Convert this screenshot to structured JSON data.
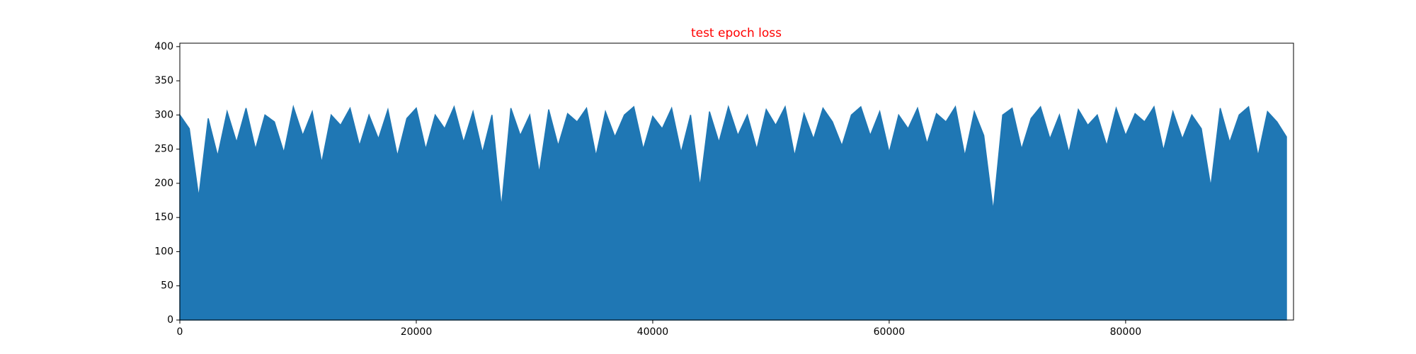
{
  "chart_data": {
    "type": "area",
    "title": "test epoch loss",
    "title_color": "#ff0000",
    "color": "#1f77b4",
    "x": [
      0,
      800,
      1600,
      2400,
      3200,
      4000,
      4800,
      5600,
      6400,
      7200,
      8000,
      8800,
      9600,
      10400,
      11200,
      12000,
      12800,
      13600,
      14400,
      15200,
      16000,
      16800,
      17600,
      18400,
      19200,
      20000,
      20800,
      21600,
      22400,
      23200,
      24000,
      24800,
      25600,
      26400,
      27200,
      28000,
      28800,
      29600,
      30400,
      31200,
      32000,
      32800,
      33600,
      34400,
      35200,
      36000,
      36800,
      37600,
      38400,
      39200,
      40000,
      40800,
      41600,
      42400,
      43200,
      44000,
      44800,
      45600,
      46400,
      47200,
      48000,
      48800,
      49600,
      50400,
      51200,
      52000,
      52800,
      53600,
      54400,
      55200,
      56000,
      56800,
      57600,
      58400,
      59200,
      60000,
      60800,
      61600,
      62400,
      63200,
      64000,
      64800,
      65600,
      66400,
      67200,
      68000,
      68800,
      69600,
      70400,
      71200,
      72000,
      72800,
      73600,
      74400,
      75200,
      76000,
      76800,
      77600,
      78400,
      79200,
      80000,
      80800,
      81600,
      82400,
      83200,
      84000,
      84800,
      85600,
      86400,
      87200,
      88000,
      88800,
      89600,
      90400,
      91200,
      92000,
      92800,
      93600
    ],
    "values": [
      300,
      280,
      180,
      295,
      240,
      305,
      260,
      310,
      250,
      300,
      290,
      245,
      312,
      270,
      305,
      230,
      300,
      285,
      310,
      255,
      300,
      265,
      308,
      240,
      295,
      310,
      250,
      300,
      280,
      312,
      260,
      305,
      245,
      300,
      165,
      310,
      270,
      300,
      215,
      308,
      255,
      302,
      290,
      310,
      240,
      305,
      268,
      300,
      312,
      250,
      298,
      280,
      310,
      245,
      300,
      195,
      305,
      260,
      312,
      270,
      300,
      250,
      308,
      285,
      312,
      240,
      302,
      265,
      310,
      290,
      255,
      300,
      312,
      270,
      305,
      245,
      300,
      280,
      310,
      258,
      302,
      290,
      312,
      240,
      305,
      270,
      160,
      300,
      310,
      250,
      295,
      312,
      265,
      300,
      245,
      308,
      285,
      300,
      255,
      310,
      270,
      302,
      290,
      312,
      248,
      305,
      265,
      300,
      280,
      195,
      310,
      260,
      300,
      312,
      240,
      305,
      290,
      268
    ],
    "xlim": [
      0,
      94200
    ],
    "xticks": [
      0,
      20000,
      40000,
      60000,
      80000
    ],
    "ylim": [
      0,
      405
    ],
    "yticks": [
      0,
      50,
      100,
      150,
      200,
      250,
      300,
      350,
      400
    ]
  }
}
